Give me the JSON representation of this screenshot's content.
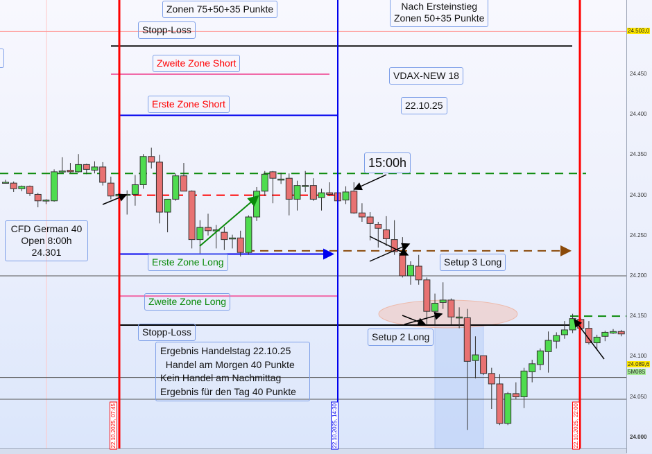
{
  "chart_data": {
    "type": "candlestick",
    "instrument_note": "CFD German 40",
    "ylim": [
      23986,
      24542
    ],
    "y_ticks": [
      "24.450",
      "24.400",
      "24.350",
      "24.300",
      "24.250",
      "24.200",
      "24.150",
      "24.100",
      "24.050",
      "24.000"
    ],
    "y_tick_values": [
      24450,
      24400,
      24350,
      24300,
      24250,
      24200,
      24150,
      24100,
      24050,
      24000
    ],
    "grid": false,
    "colors": {
      "up": "#4fdc4f",
      "down": "#e87272"
    },
    "candles_ohlc": [
      [
        24316,
        24319,
        24315,
        24316
      ],
      [
        24315,
        24317,
        24304,
        24308
      ],
      [
        24308,
        24312,
        24305,
        24311
      ],
      [
        24311,
        24312,
        24299,
        24302
      ],
      [
        24301,
        24303,
        24285,
        24293
      ],
      [
        24294,
        24295,
        24289,
        24294
      ],
      [
        24293,
        24332,
        24292,
        24329
      ],
      [
        24329,
        24347,
        24328,
        24330
      ],
      [
        24331,
        24340,
        24328,
        24329
      ],
      [
        24329,
        24351,
        24328,
        24338
      ],
      [
        24338,
        24339,
        24326,
        24332
      ],
      [
        24331,
        24342,
        24327,
        24335
      ],
      [
        24335,
        24341,
        24312,
        24316
      ],
      [
        24315,
        24323,
        24295,
        24299
      ],
      [
        24299,
        24303,
        24298,
        24301
      ],
      [
        24301,
        24306,
        24276,
        24301
      ],
      [
        24301,
        24325,
        24287,
        24313
      ],
      [
        24313,
        24351,
        24308,
        24348
      ],
      [
        24348,
        24359,
        24333,
        24341
      ],
      [
        24341,
        24350,
        24265,
        24279
      ],
      [
        24279,
        24295,
        24254,
        24295
      ],
      [
        24295,
        24327,
        24293,
        24324
      ],
      [
        24324,
        24340,
        24305,
        24305
      ],
      [
        24305,
        24306,
        24234,
        24245
      ],
      [
        24245,
        24269,
        24228,
        24260
      ],
      [
        24260,
        24277,
        24250,
        24256
      ],
      [
        24256,
        24263,
        24234,
        24257
      ],
      [
        24254,
        24261,
        24232,
        24245
      ],
      [
        24247,
        24251,
        24234,
        24247
      ],
      [
        24247,
        24256,
        24224,
        24229
      ],
      [
        24229,
        24275,
        24226,
        24273
      ],
      [
        24273,
        24310,
        24268,
        24305
      ],
      [
        24305,
        24330,
        24299,
        24326
      ],
      [
        24329,
        24330,
        24290,
        24321
      ],
      [
        24320,
        24328,
        24314,
        24320
      ],
      [
        24321,
        24327,
        24275,
        24295
      ],
      [
        24295,
        24318,
        24281,
        24312
      ],
      [
        24312,
        24330,
        24304,
        24312
      ],
      [
        24312,
        24321,
        24293,
        24295
      ],
      [
        24297,
        24308,
        24281,
        24303
      ],
      [
        24303,
        24316,
        24299,
        24301
      ],
      [
        24303,
        24305,
        24292,
        24293
      ],
      [
        24294,
        24311,
        24289,
        24304
      ],
      [
        24305,
        24316,
        24277,
        24278
      ],
      [
        24278,
        24290,
        24267,
        24273
      ],
      [
        24273,
        24279,
        24244,
        24265
      ],
      [
        24264,
        24267,
        24235,
        24259
      ],
      [
        24257,
        24274,
        24237,
        24246
      ],
      [
        24245,
        24269,
        24226,
        24230
      ],
      [
        24228,
        24248,
        24198,
        24200
      ],
      [
        24200,
        24218,
        24189,
        24213
      ],
      [
        24212,
        24226,
        24189,
        24195
      ],
      [
        24195,
        24198,
        24140,
        24156
      ],
      [
        24156,
        24178,
        24140,
        24166
      ],
      [
        24167,
        24192,
        24159,
        24170
      ],
      [
        24170,
        24172,
        24140,
        24149
      ],
      [
        24149,
        24161,
        24135,
        24149
      ],
      [
        24148,
        24159,
        24009,
        24094
      ],
      [
        24095,
        24125,
        24073,
        24102
      ],
      [
        24101,
        24101,
        24077,
        24079
      ],
      [
        24079,
        24086,
        24035,
        24066
      ],
      [
        24066,
        24078,
        24015,
        24017
      ],
      [
        24017,
        24056,
        24015,
        24054
      ],
      [
        24054,
        24068,
        24047,
        24050
      ],
      [
        24050,
        24086,
        24036,
        24082
      ],
      [
        24081,
        24096,
        24068,
        24091
      ],
      [
        24090,
        24110,
        24083,
        24107
      ],
      [
        24106,
        24131,
        24080,
        24120
      ],
      [
        24119,
        24130,
        24110,
        24126
      ],
      [
        24127,
        24144,
        24122,
        24133
      ],
      [
        24133,
        24153,
        24129,
        24147
      ],
      [
        24146,
        24148,
        24133,
        24135
      ],
      [
        24135,
        24144,
        24115,
        24117
      ],
      [
        24117,
        24127,
        24109,
        24124
      ],
      [
        24125,
        24132,
        24119,
        24130
      ],
      [
        24129,
        24134,
        24128,
        24131
      ],
      [
        24131,
        24133,
        24125,
        24128
      ]
    ],
    "levels": [
      {
        "price": 24485,
        "color": "#000000",
        "style": "solid"
      },
      {
        "price": 24450,
        "color": "#f06aa8",
        "style": "solid"
      },
      {
        "price": 24399,
        "color": "#0000ee",
        "style": "solid"
      },
      {
        "price": 24327,
        "color": "#0a8a0a",
        "style": "dashed"
      },
      {
        "price": 24300,
        "color": "#ff0000",
        "style": "dashed"
      },
      {
        "price": 24231,
        "color": "#8b4a0a",
        "style": "dashed"
      },
      {
        "price": 24227,
        "color": "#0000ee",
        "style": "solid"
      },
      {
        "price": 24200,
        "color": "#555555",
        "style": "thin"
      },
      {
        "price": 24175,
        "color": "#f06aa8",
        "style": "solid"
      },
      {
        "price": 24150,
        "color": "#0a8a0a",
        "style": "dashed"
      },
      {
        "price": 24139,
        "color": "#000000",
        "style": "solid"
      },
      {
        "price": 24074,
        "color": "#555555",
        "style": "thin"
      },
      {
        "price": 24047,
        "color": "#555555",
        "style": "thin"
      },
      {
        "price": 24503,
        "color": "#ff9a9a",
        "style": "thin"
      }
    ],
    "price_labels": {
      "top": "24.503,0",
      "current": "24.089,6",
      "countdown": "5M08S"
    },
    "vertical_markers": [
      {
        "label": "22.10.2025, 07:45",
        "color": "#ff0000"
      },
      {
        "label": "22.10.2025, 14:30",
        "color": "#0000ee"
      },
      {
        "label": "22.10.2025, 22:00",
        "color": "#ff0000"
      }
    ]
  },
  "annotations": {
    "zonen_top": "Zonen 75+50+35 Punkte",
    "nach_ersteinstieg": "Nach Ersteinstieg\nZonen 50+35 Punkte",
    "stopp_loss_top": "Stopp-Loss",
    "zweite_zone_short": "Zweite Zone Short",
    "erste_zone_short": "Erste Zone Short",
    "vdax": "VDAX-NEW 18",
    "date": "22.10.25",
    "time_1500": "15:00h",
    "cfd_info": "CFD German 40\nOpen 8:00h\n24.301",
    "erste_zone_long": "Erste Zone Long",
    "setup3": "Setup 3 Long",
    "zweite_zone_long": "Zweite Zone Long",
    "stopp_loss_bottom": "Stopp-Loss",
    "setup2": "Setup 2 Long",
    "ergebnis": "Ergebnis Handelstag 22.10.25\n  Handel am Morgen 40 Punkte\nKein Handel am Nachmittag\nErgebnis für den Tag 40 Punkte"
  }
}
